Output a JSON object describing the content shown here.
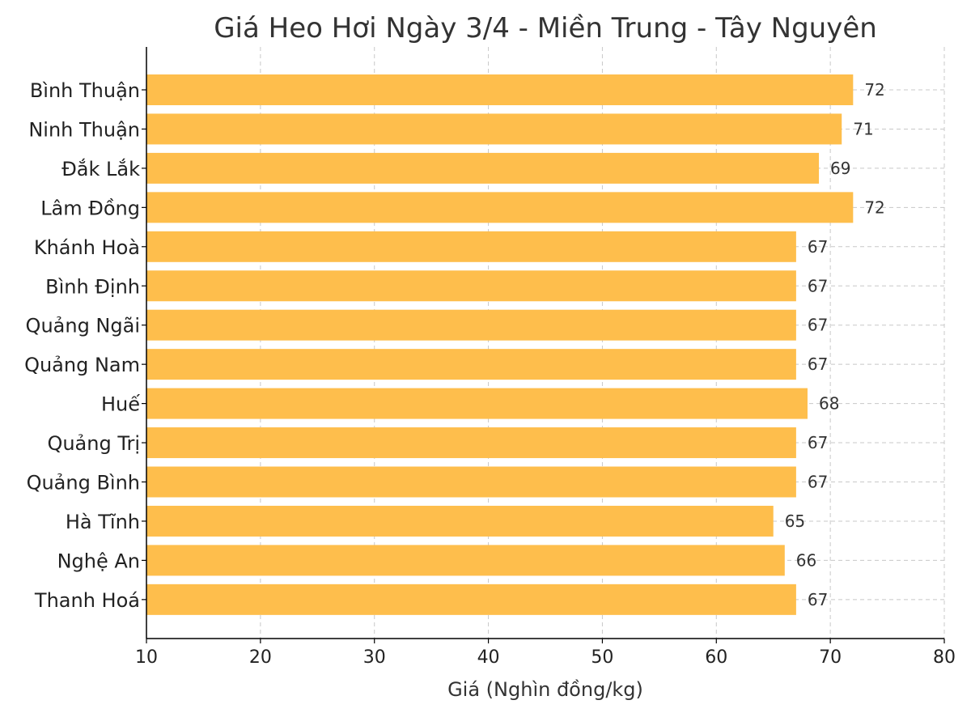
{
  "chart_data": {
    "type": "bar",
    "orientation": "horizontal",
    "title": "Giá Heo Hơi Ngày 3/4 - Miền Trung - Tây Nguyên",
    "xlabel": "Giá (Nghìn đồng/kg)",
    "ylabel": "",
    "xlim": [
      10,
      80
    ],
    "xticks": [
      10,
      20,
      30,
      40,
      50,
      60,
      70,
      80
    ],
    "grid": true,
    "bar_color": "#FEBE4C",
    "categories": [
      "Bình Thuận",
      "Ninh Thuận",
      "Đắk Lắk",
      "Lâm Đồng",
      "Khánh Hoà",
      "Bình Định",
      "Quảng Ngãi",
      "Quảng Nam",
      "Huế",
      "Quảng Trị",
      "Quảng Bình",
      "Hà Tĩnh",
      "Nghệ An",
      "Thanh Hoá"
    ],
    "values": [
      72,
      71,
      69,
      72,
      67,
      67,
      67,
      67,
      68,
      67,
      67,
      65,
      66,
      67
    ]
  }
}
